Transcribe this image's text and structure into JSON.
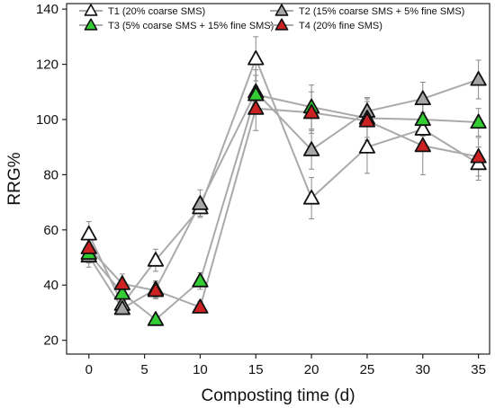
{
  "chart_data": {
    "type": "line",
    "xlabel": "Composting time (d)",
    "ylabel": "RRG%",
    "xlim": [
      -2,
      36
    ],
    "ylim": [
      15,
      142
    ],
    "x_ticks": [
      0,
      5,
      10,
      15,
      20,
      25,
      30,
      35
    ],
    "y_ticks": [
      20,
      40,
      60,
      80,
      100,
      120,
      140
    ],
    "x_tick_labels": [
      "0",
      "5",
      "10",
      "15",
      "20",
      "25",
      "30",
      "35"
    ],
    "y_tick_labels": [
      "20",
      "40",
      "60",
      "80",
      "100",
      "120",
      "140"
    ],
    "grid": false,
    "legend_position": "top",
    "line_color": "#aaaaaa",
    "x": [
      0,
      3,
      6,
      10,
      15,
      20,
      25,
      30,
      35
    ],
    "series": [
      {
        "name": "T1 (20% coarse SMS)",
        "color": "#ffffff",
        "values": [
          58.5,
          33,
          49,
          68,
          122,
          71.5,
          90,
          96.5,
          84
        ],
        "errors": [
          4.5,
          2,
          4,
          3,
          8,
          7.5,
          9.5,
          6,
          6
        ]
      },
      {
        "name": "T2 (15% coarse SMS + 5% fine SMS)",
        "color": "#a6a6a6",
        "values": [
          50.5,
          31.5,
          38.5,
          69.5,
          110,
          89,
          103,
          107.5,
          114.5
        ],
        "errors": [
          4,
          2,
          3,
          5,
          8,
          7,
          5,
          6,
          7
        ]
      },
      {
        "name": "T3 (5% coarse SMS + 15% fine SMS)",
        "color": "#33cc33",
        "values": [
          51.5,
          37,
          27.5,
          41.5,
          109,
          104.5,
          100.5,
          100,
          99
        ],
        "errors": [
          3.5,
          3,
          1.5,
          3,
          7,
          8,
          7,
          6,
          5
        ]
      },
      {
        "name": "T4 (20% fine SMS)",
        "color": "#cc2222",
        "values": [
          53.5,
          40.5,
          38,
          32,
          104,
          102.5,
          99.5,
          90.5,
          86.5
        ],
        "errors": [
          5,
          3.5,
          3,
          2,
          8,
          7.5,
          7,
          10.5,
          7
        ]
      }
    ]
  }
}
